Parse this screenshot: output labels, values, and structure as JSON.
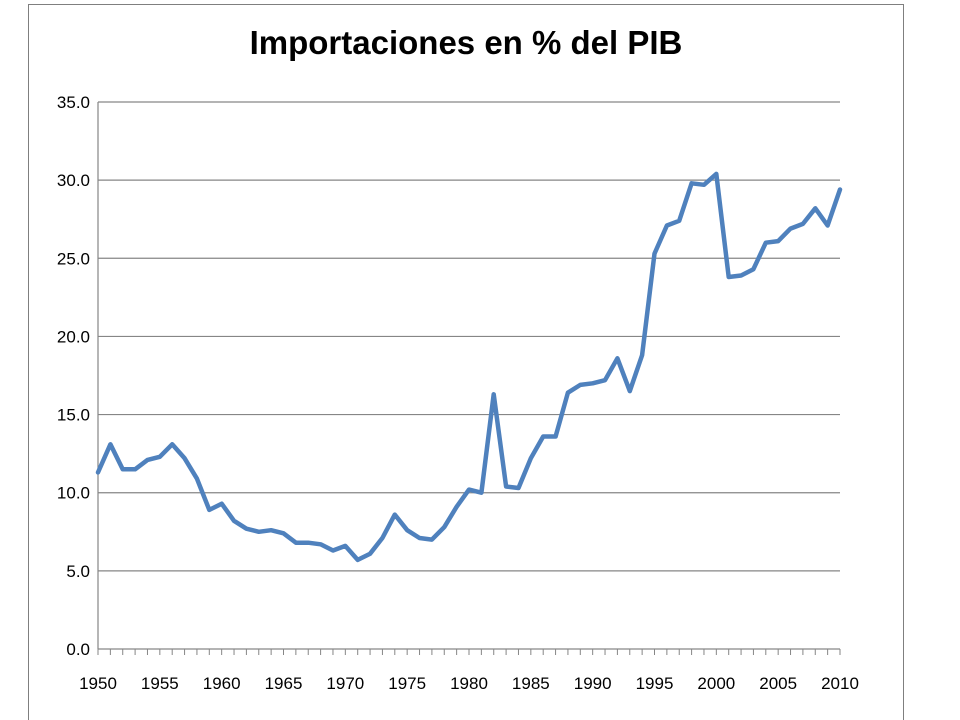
{
  "chart_data": {
    "type": "line",
    "title": "Importaciones en % del PIB",
    "xlabel": "",
    "ylabel": "",
    "xlim": [
      1950,
      2010
    ],
    "ylim": [
      0,
      35
    ],
    "y_ticks": [
      0,
      5,
      10,
      15,
      20,
      25,
      30,
      35
    ],
    "y_tick_labels": [
      "0.0",
      "5.0",
      "10.0",
      "15.0",
      "20.0",
      "25.0",
      "30.0",
      "35.0"
    ],
    "x_ticks": [
      1950,
      1955,
      1960,
      1965,
      1970,
      1975,
      1980,
      1985,
      1990,
      1995,
      2000,
      2005,
      2010
    ],
    "x_tick_labels": [
      "1950",
      "1955",
      "1960",
      "1965",
      "1970",
      "1975",
      "1980",
      "1985",
      "1990",
      "1995",
      "2000",
      "2005",
      "2010"
    ],
    "grid": "horizontal",
    "legend": "none",
    "series_color": "#4F81BD",
    "grid_color": "#868686",
    "series": [
      {
        "x": [
          1950,
          1951,
          1952,
          1953,
          1954,
          1955,
          1956,
          1957,
          1958,
          1959,
          1960,
          1961,
          1962,
          1963,
          1964,
          1965,
          1966,
          1967,
          1968,
          1969,
          1970,
          1971,
          1972,
          1973,
          1974,
          1975,
          1976,
          1977,
          1978,
          1979,
          1980,
          1981,
          1982,
          1983,
          1984,
          1985,
          1986,
          1987,
          1988,
          1989,
          1990,
          1991,
          1992,
          1993,
          1994,
          1995,
          1996,
          1997,
          1998,
          1999,
          2000,
          2001,
          2002,
          2003,
          2004,
          2005,
          2006,
          2007,
          2008,
          2009,
          2010
        ],
        "values": [
          11.3,
          13.1,
          11.5,
          11.5,
          12.1,
          12.3,
          13.1,
          12.2,
          10.9,
          8.9,
          9.3,
          8.2,
          7.7,
          7.5,
          7.6,
          7.4,
          6.8,
          6.8,
          6.7,
          6.3,
          6.6,
          5.7,
          6.1,
          7.1,
          8.6,
          7.6,
          7.1,
          7.0,
          7.8,
          9.1,
          10.2,
          10.0,
          16.3,
          10.4,
          10.3,
          12.2,
          13.6,
          13.6,
          16.4,
          16.9,
          17.0,
          17.2,
          18.6,
          16.5,
          18.8,
          25.3,
          27.1,
          27.4,
          29.8,
          29.7,
          30.4,
          23.8,
          23.9,
          24.3,
          26.0,
          26.1,
          26.9,
          27.2,
          28.2,
          27.1,
          29.4
        ]
      }
    ]
  }
}
